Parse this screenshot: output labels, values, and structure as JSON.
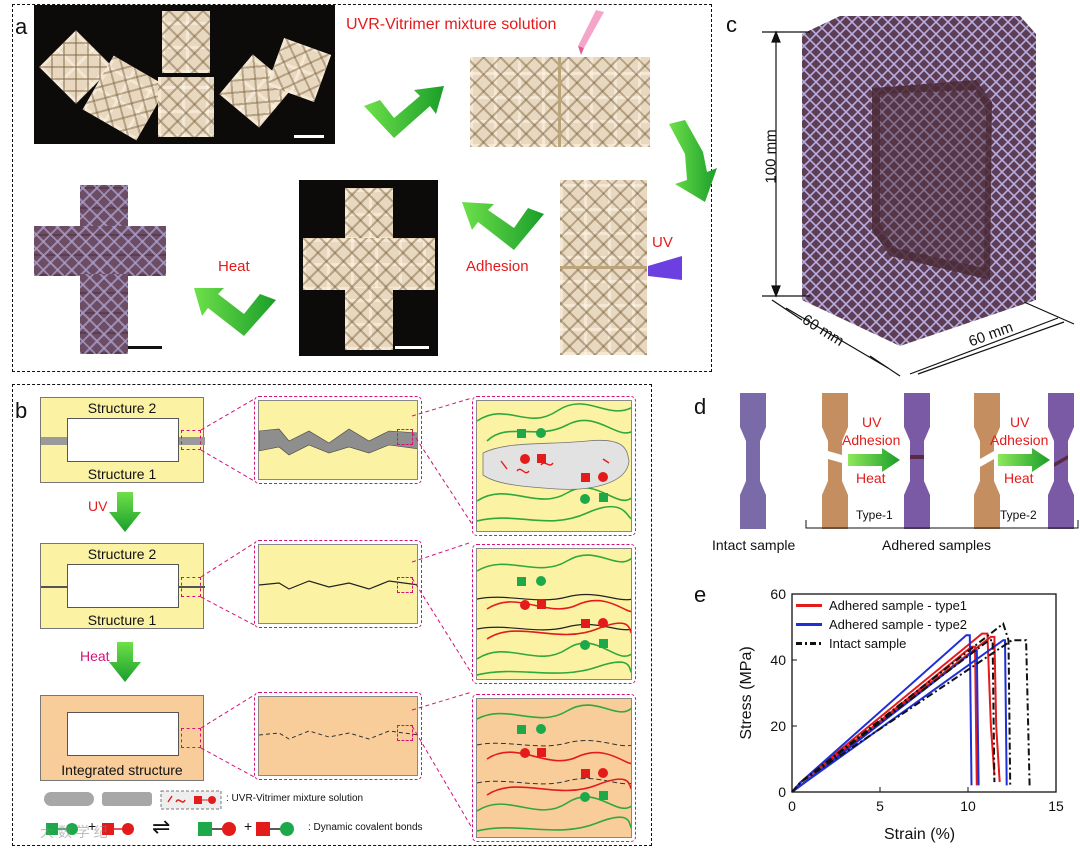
{
  "panel_a": {
    "letter": "a",
    "mixture_label": "UVR-Vitrimer mixture solution",
    "uv_label": "UV",
    "adhesion_label": "Adhesion",
    "heat_label": "Heat"
  },
  "panel_b": {
    "letter": "b",
    "structure2": "Structure 2",
    "structure1": "Structure 1",
    "uv_step": "UV",
    "heat_step": "Heat",
    "integrated": "Integrated structure",
    "legend_solution": ": UVR-Vitrimer mixture solution",
    "legend_bonds": ": Dynamic covalent bonds",
    "arrow_symbol": "⇌",
    "plus_symbol": "+"
  },
  "panel_c": {
    "letter": "c",
    "height_label": "100 mm",
    "depth_label": "60 mm",
    "width_label": "60 mm"
  },
  "panel_d": {
    "letter": "d",
    "arrow1_line1": "UV",
    "arrow1_line2": "Adhesion",
    "arrow1_line3": "Heat",
    "arrow2_line1": "UV",
    "arrow2_line2": "Adhesion",
    "arrow2_line3": "Heat",
    "type1": "Type-1",
    "type2": "Type-2",
    "intact": "Intact sample",
    "adhered": "Adhered samples"
  },
  "panel_e": {
    "letter": "e"
  },
  "chart_data": {
    "type": "line",
    "xlabel": "Strain (%)",
    "ylabel": "Stress (MPa)",
    "xlim": [
      0,
      15
    ],
    "ylim": [
      0,
      60
    ],
    "xticks": [
      0,
      5,
      10,
      15
    ],
    "yticks": [
      0,
      20,
      40,
      60
    ],
    "legend_position": "top-left",
    "series": [
      {
        "name": "Adhered sample - type1",
        "color": "#e41b1b",
        "style": "solid",
        "curves": [
          [
            [
              0,
              0
            ],
            [
              0.5,
              3
            ],
            [
              10.8,
              48
            ],
            [
              11.1,
              48
            ],
            [
              11.3,
              20
            ],
            [
              11.5,
              5
            ]
          ],
          [
            [
              0,
              0
            ],
            [
              0.5,
              3
            ],
            [
              11.3,
              47
            ],
            [
              11.5,
              47
            ],
            [
              11.6,
              20
            ],
            [
              11.8,
              3
            ]
          ],
          [
            [
              0,
              0
            ],
            [
              0.5,
              2
            ],
            [
              10.2,
              44
            ],
            [
              10.4,
              44
            ],
            [
              10.5,
              2
            ]
          ]
        ]
      },
      {
        "name": "Adhered sample - type2",
        "color": "#1f2fd6",
        "style": "solid",
        "curves": [
          [
            [
              0,
              0
            ],
            [
              0.5,
              3
            ],
            [
              9.9,
              47.5
            ],
            [
              10.1,
              47.5
            ],
            [
              10.2,
              2
            ]
          ],
          [
            [
              0,
              0
            ],
            [
              0.5,
              2
            ],
            [
              12.0,
              46
            ],
            [
              12.1,
              46
            ],
            [
              12.2,
              2
            ]
          ],
          [
            [
              0,
              0
            ],
            [
              0.5,
              2
            ],
            [
              10.4,
              43
            ],
            [
              10.5,
              43
            ],
            [
              10.6,
              2
            ]
          ]
        ]
      },
      {
        "name": "Intact sample",
        "color": "#111111",
        "style": "dashdot",
        "curves": [
          [
            [
              0,
              0
            ],
            [
              0.5,
              3
            ],
            [
              11.2,
              46
            ],
            [
              11.4,
              46
            ],
            [
              11.5,
              3
            ]
          ],
          [
            [
              0,
              0
            ],
            [
              0.5,
              3
            ],
            [
              12.0,
              51
            ],
            [
              12.3,
              46
            ],
            [
              12.4,
              2
            ]
          ],
          [
            [
              0,
              0
            ],
            [
              0.5,
              3
            ],
            [
              12.5,
              46
            ],
            [
              13.3,
              46
            ],
            [
              13.5,
              2
            ]
          ]
        ]
      }
    ]
  },
  "watermark": "大 数 学 纪"
}
